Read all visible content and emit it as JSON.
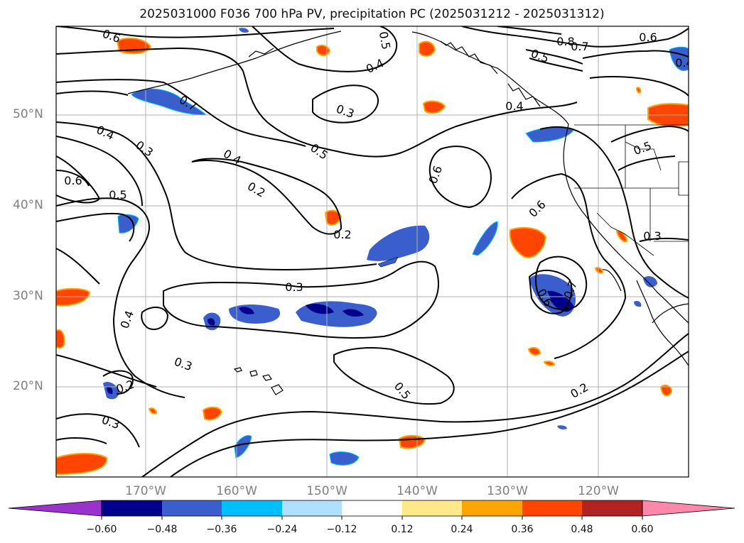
{
  "title": "2025031000 F036 700 hPa PV, precipitation PC (2025031212 - 2025031312)",
  "map": {
    "lat_labels": [
      "50°N",
      "40°N",
      "30°N",
      "20°N"
    ],
    "lon_labels": [
      "170°W",
      "160°W",
      "150°W",
      "140°W",
      "130°W",
      "120°W"
    ]
  },
  "pv_contour_labels": [
    "0.6",
    "0.7",
    "0.6",
    "0.5",
    "0.4",
    "0.3",
    "0.4",
    "0.2",
    "0.5",
    "0.3",
    "0.2",
    "0.4",
    "0.3",
    "0.2",
    "0.3",
    "0.5",
    "0.5",
    "0.4",
    "0.8",
    "0.7",
    "0.6",
    "0.5",
    "0.6",
    "0.6",
    "0.6",
    "0.7",
    "0.2",
    "0.3",
    "0.4",
    "0.5",
    "0.4",
    "0.3"
  ],
  "colorbar": {
    "tick_labels": [
      "−0.60",
      "−0.48",
      "−0.36",
      "−0.24",
      "−0.12",
      "0.12",
      "0.24",
      "0.36",
      "0.48",
      "0.60"
    ],
    "colors": [
      "#9933cc",
      "#00008b",
      "#3a5fcd",
      "#00bfff",
      "#b0e0ff",
      "#ffffff",
      "#ffe88a",
      "#ffa500",
      "#ff4500",
      "#b22222",
      "#ff88aa"
    ]
  }
}
